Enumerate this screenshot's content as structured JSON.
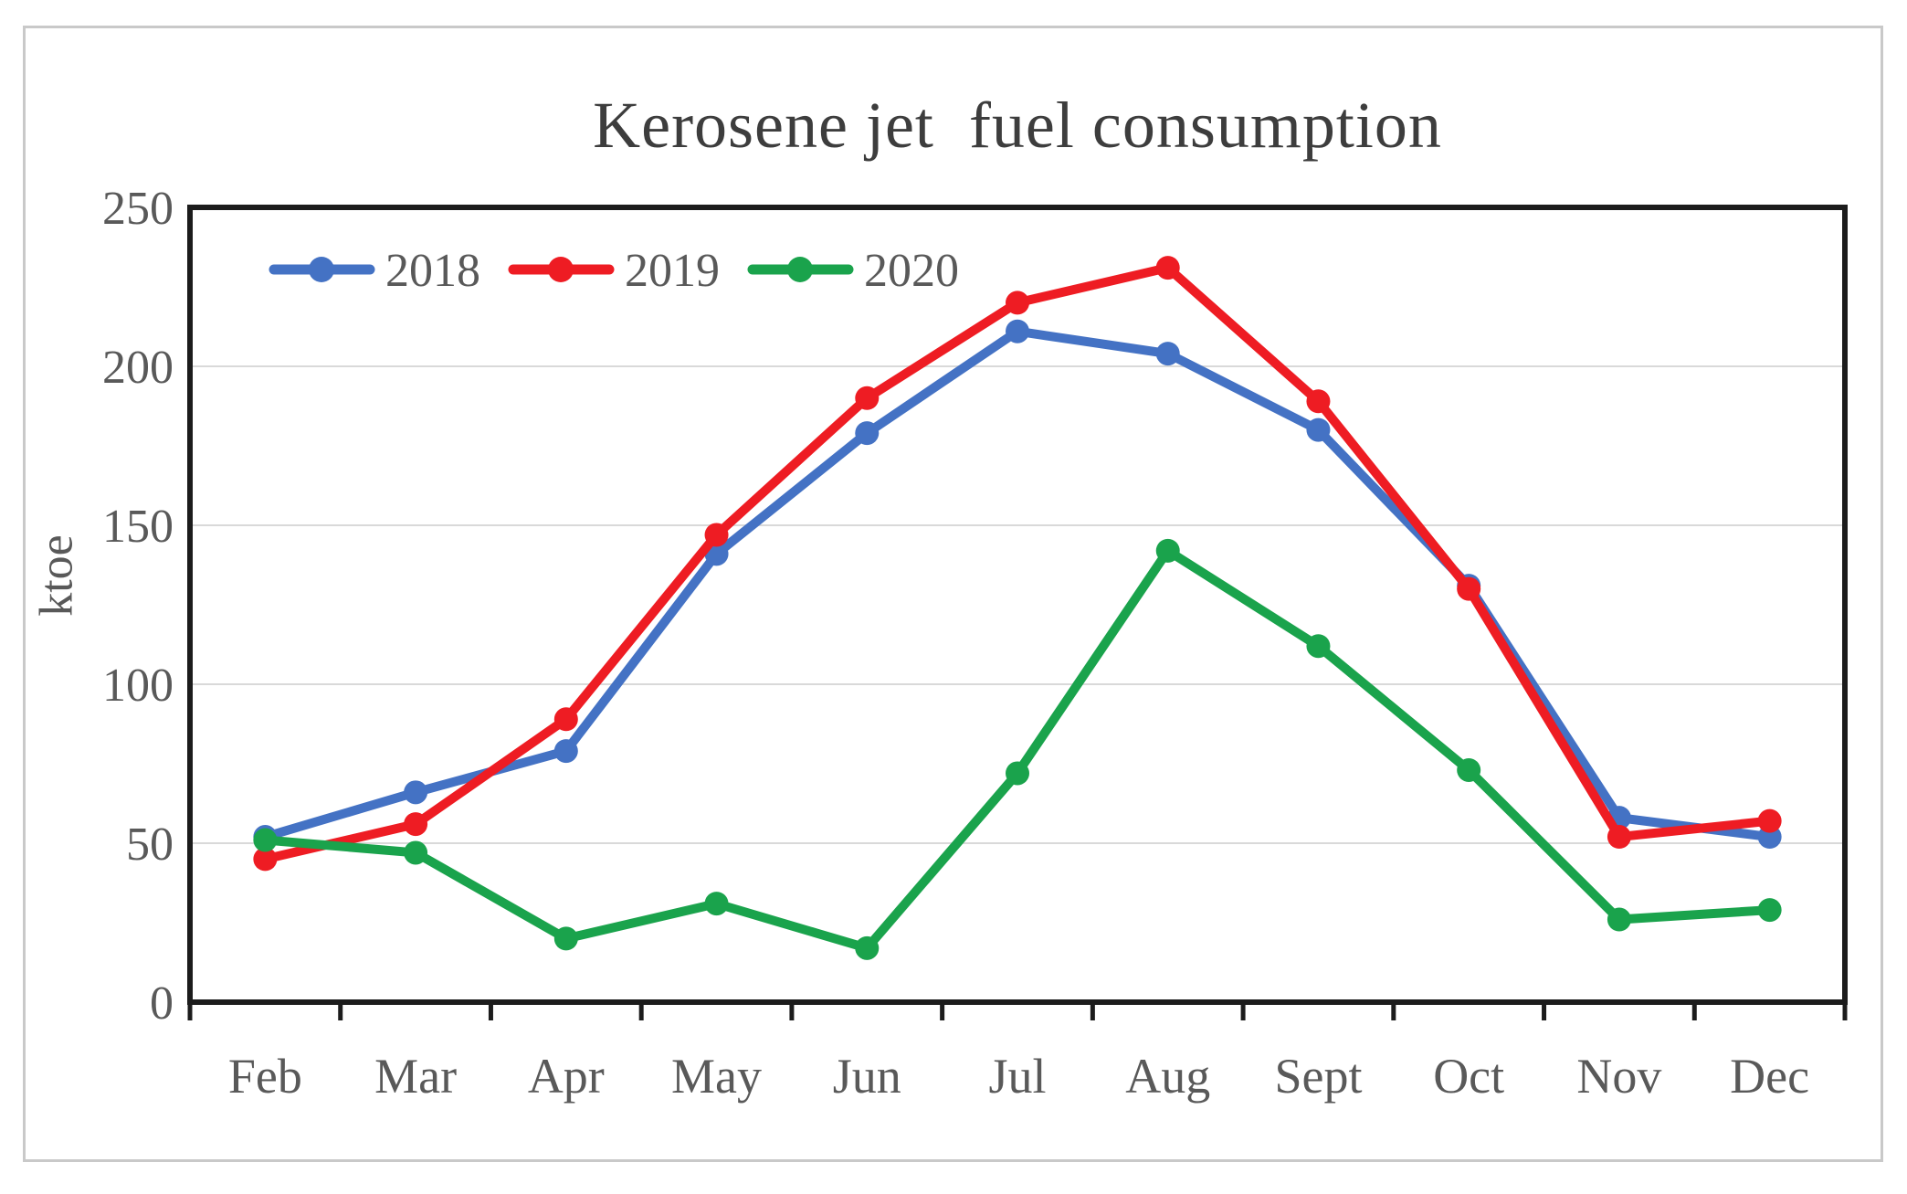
{
  "figure": {
    "background": "#ffffff",
    "frame_color": "#c9c9c9"
  },
  "chart_data": {
    "type": "line",
    "title": "Kerosene jet  fuel consumption",
    "xlabel": "",
    "ylabel": "ktoe",
    "categories": [
      "Feb",
      "Mar",
      "Apr",
      "May",
      "Jun",
      "Jul",
      "Aug",
      "Sept",
      "Oct",
      "Nov",
      "Dec"
    ],
    "y_ticks": [
      0,
      50,
      100,
      150,
      200,
      250
    ],
    "ylim": [
      0,
      250
    ],
    "grid": true,
    "legend_position": "top-left-inside",
    "series": [
      {
        "name": "2018",
        "color": "#4472c4",
        "values": [
          52,
          66,
          79,
          141,
          179,
          211,
          204,
          180,
          131,
          58,
          52
        ]
      },
      {
        "name": "2019",
        "color": "#ee1c23",
        "values": [
          45,
          56,
          89,
          147,
          190,
          220,
          231,
          189,
          130,
          52,
          57
        ]
      },
      {
        "name": "2020",
        "color": "#1aa34c",
        "values": [
          51,
          47,
          20,
          31,
          17,
          72,
          142,
          112,
          73,
          26,
          29
        ]
      }
    ],
    "axis_color": "#1c1c1c",
    "grid_color": "#d9d9d9",
    "tick_label_color": "#595959",
    "title_color": "#3d3d3d"
  }
}
